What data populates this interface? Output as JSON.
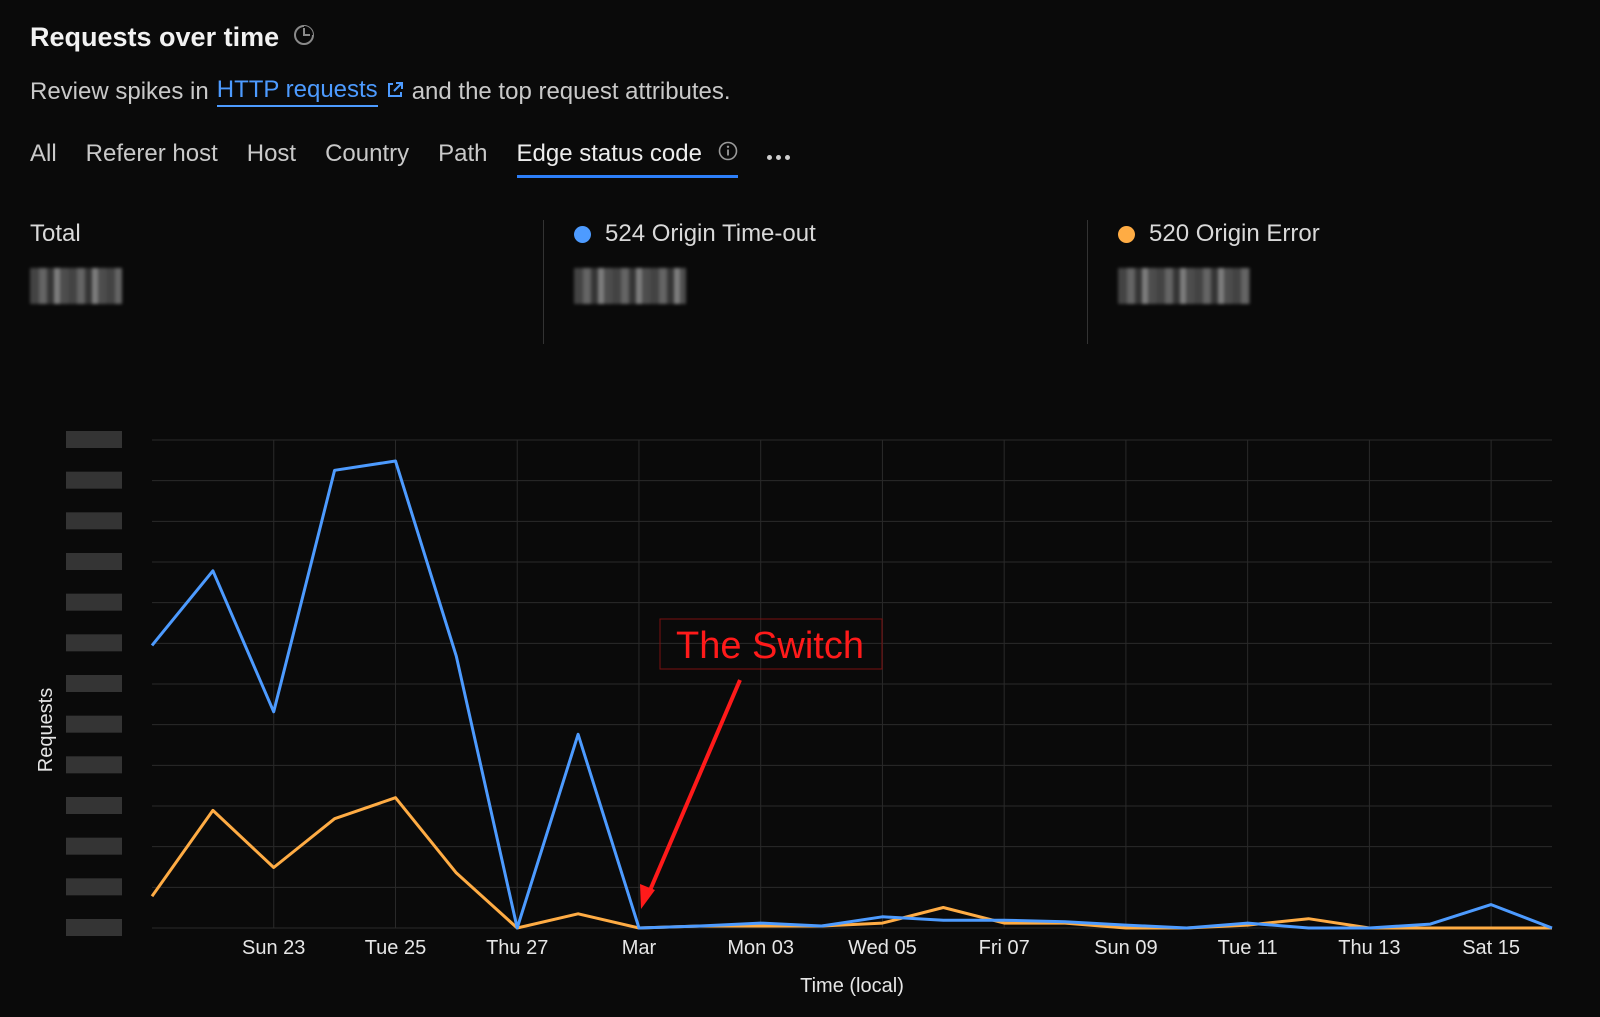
{
  "header": {
    "title": "Requests over time",
    "subtitle_before": "Review spikes in",
    "subtitle_link": "HTTP requests",
    "subtitle_after": "and the top request attributes."
  },
  "tabs": [
    {
      "label": "All"
    },
    {
      "label": "Referer host"
    },
    {
      "label": "Host"
    },
    {
      "label": "Country"
    },
    {
      "label": "Path"
    },
    {
      "label": "Edge status code",
      "active": true
    }
  ],
  "stats": {
    "total_label": "Total",
    "series_1_label": "524 Origin Time-out",
    "series_2_label": "520 Origin Error"
  },
  "colors": {
    "series_1": "#4d9bff",
    "series_2": "#ffac44",
    "annotation": "#ff1a1a",
    "tab_active": "#2d7ff9",
    "grid": "#2a2a2a"
  },
  "icons": [
    "clock-icon",
    "external-link-icon",
    "info-icon",
    "more-icon"
  ],
  "annotation": {
    "text": "The Switch"
  },
  "chart_data": {
    "type": "line",
    "xlabel": "Time (local)",
    "ylabel": "Requests",
    "x": [
      "Feb 21",
      "Feb 22",
      "Feb 23",
      "Feb 24",
      "Feb 25",
      "Feb 26",
      "Feb 27",
      "Feb 28",
      "Mar 01",
      "Mar 02",
      "Mar 03",
      "Mar 04",
      "Mar 05",
      "Mar 06",
      "Mar 07",
      "Mar 08",
      "Mar 09",
      "Mar 10",
      "Mar 11",
      "Mar 12",
      "Mar 13",
      "Mar 14",
      "Mar 15",
      "Mar 16"
    ],
    "x_tick_labels": [
      "Sun 23",
      "Tue 25",
      "Thu 27",
      "Mar",
      "Mon 03",
      "Wed 05",
      "Fri 07",
      "Sun 09",
      "Tue 11",
      "Thu 13",
      "Sat 15"
    ],
    "y_tick_labels_obscured": true,
    "grid": true,
    "series": [
      {
        "name": "524 Origin Time-out",
        "values": [
          0.579,
          0.732,
          0.443,
          0.938,
          0.957,
          0.557,
          0.0,
          0.397,
          0.0,
          0.004,
          0.01,
          0.004,
          0.023,
          0.016,
          0.016,
          0.013,
          0.006,
          0.0,
          0.01,
          0.0,
          0.0,
          0.008,
          0.048,
          0.0
        ]
      },
      {
        "name": "520 Origin Error",
        "values": [
          0.065,
          0.241,
          0.124,
          0.224,
          0.267,
          0.113,
          0.0,
          0.029,
          0.0,
          0.004,
          0.004,
          0.004,
          0.01,
          0.042,
          0.01,
          0.01,
          0.0,
          0.0,
          0.006,
          0.019,
          0.0,
          0.0,
          0.0,
          0.0
        ]
      }
    ]
  }
}
